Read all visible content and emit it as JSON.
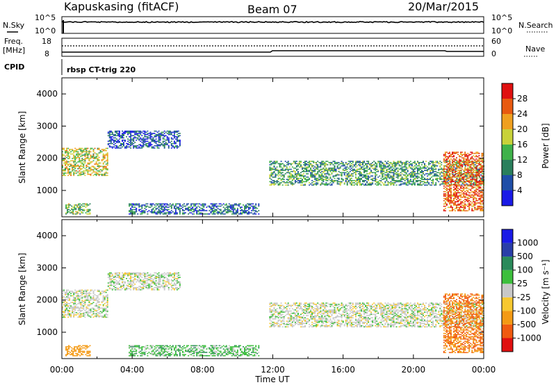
{
  "header": {
    "station": "Kapuskasing (fitACF)",
    "beam": "Beam 07",
    "date": "20/Mar/2015"
  },
  "status_panels": {
    "nsky_label": "N.Sky",
    "nsky_ticks": [
      "10^5",
      "10^0"
    ],
    "nsearch_label": "N.Search",
    "nsearch_ticks": [
      "10^5",
      "10^0"
    ],
    "freq_label_1": "Freq.",
    "freq_label_2": "[MHz]",
    "freq_ticks": [
      "18",
      "8"
    ],
    "nave_label": "Nave",
    "nave_ticks": [
      "60",
      "0"
    ],
    "cpid_label": "CPID",
    "cpid_value": "rbsp CT-trig 220"
  },
  "axes": {
    "ylabel": "Slant Range [km]",
    "xlabel": "Time UT",
    "y_ticks": [
      "1000",
      "2000",
      "3000",
      "4000"
    ],
    "x_ticks": [
      "00:00",
      "04:00",
      "08:00",
      "12:00",
      "16:00",
      "20:00",
      "00:00"
    ]
  },
  "colorbars": {
    "power": {
      "label": "Power [dB]",
      "ticks": [
        "4",
        "8",
        "12",
        "16",
        "20",
        "24",
        "28"
      ]
    },
    "velocity": {
      "label": "Velocity [m s⁻¹]",
      "ticks": [
        "-1000",
        "-500",
        "-100",
        "-25",
        "25",
        "100",
        "500",
        "1000"
      ]
    }
  },
  "colors": {
    "power_scale": [
      "#1a1ae6",
      "#1f4ea8",
      "#2a7f5c",
      "#3fb24a",
      "#c8d23a",
      "#f0a020",
      "#e85a10",
      "#e01010"
    ],
    "velocity_scale": [
      "#e01010",
      "#f05a10",
      "#f49a14",
      "#f7c830",
      "#c8c8c8",
      "#3cbf3c",
      "#2a8a5a",
      "#2a3ea8",
      "#1a1ae6"
    ]
  },
  "chart_data": {
    "type": "heatmap",
    "x_range_hours": [
      0,
      24
    ],
    "y_range_km": [
      180,
      4500
    ],
    "panels": [
      "Power",
      "Velocity"
    ],
    "echo_regions": [
      {
        "name": "evening-arc",
        "t_start": 0.0,
        "t_end": 2.6,
        "range_km": [
          1450,
          2300
        ],
        "power_db": 18,
        "velocity": 0
      },
      {
        "name": "rising-arc",
        "t_start": 2.6,
        "t_end": 6.7,
        "range_km": [
          2300,
          2850
        ],
        "power_db": 6,
        "velocity": 0
      },
      {
        "name": "near-range-morning",
        "t_start": 0.2,
        "t_end": 1.6,
        "range_km": [
          250,
          600
        ],
        "power_db": 14,
        "velocity": -300
      },
      {
        "name": "near-range-midday",
        "t_start": 3.8,
        "t_end": 11.2,
        "range_km": [
          250,
          600
        ],
        "power_db": 8,
        "velocity": 60
      },
      {
        "name": "post-noon-band",
        "t_start": 11.8,
        "t_end": 24.0,
        "range_km": [
          1150,
          1900
        ],
        "power_db": 12,
        "velocity": 0
      },
      {
        "name": "late-evening-patch",
        "t_start": 21.7,
        "t_end": 24.0,
        "range_km": [
          350,
          2200
        ],
        "power_db": 26,
        "velocity": -500
      }
    ],
    "title": "Kapuskasing (fitACF)  Beam 07  20/Mar/2015",
    "xlabel": "Time UT",
    "ylabel": "Slant Range [km]",
    "colorbar_power_db": [
      4,
      8,
      12,
      16,
      20,
      24,
      28
    ],
    "colorbar_velocity": [
      -1000,
      -500,
      -100,
      -25,
      25,
      100,
      500,
      1000
    ]
  }
}
